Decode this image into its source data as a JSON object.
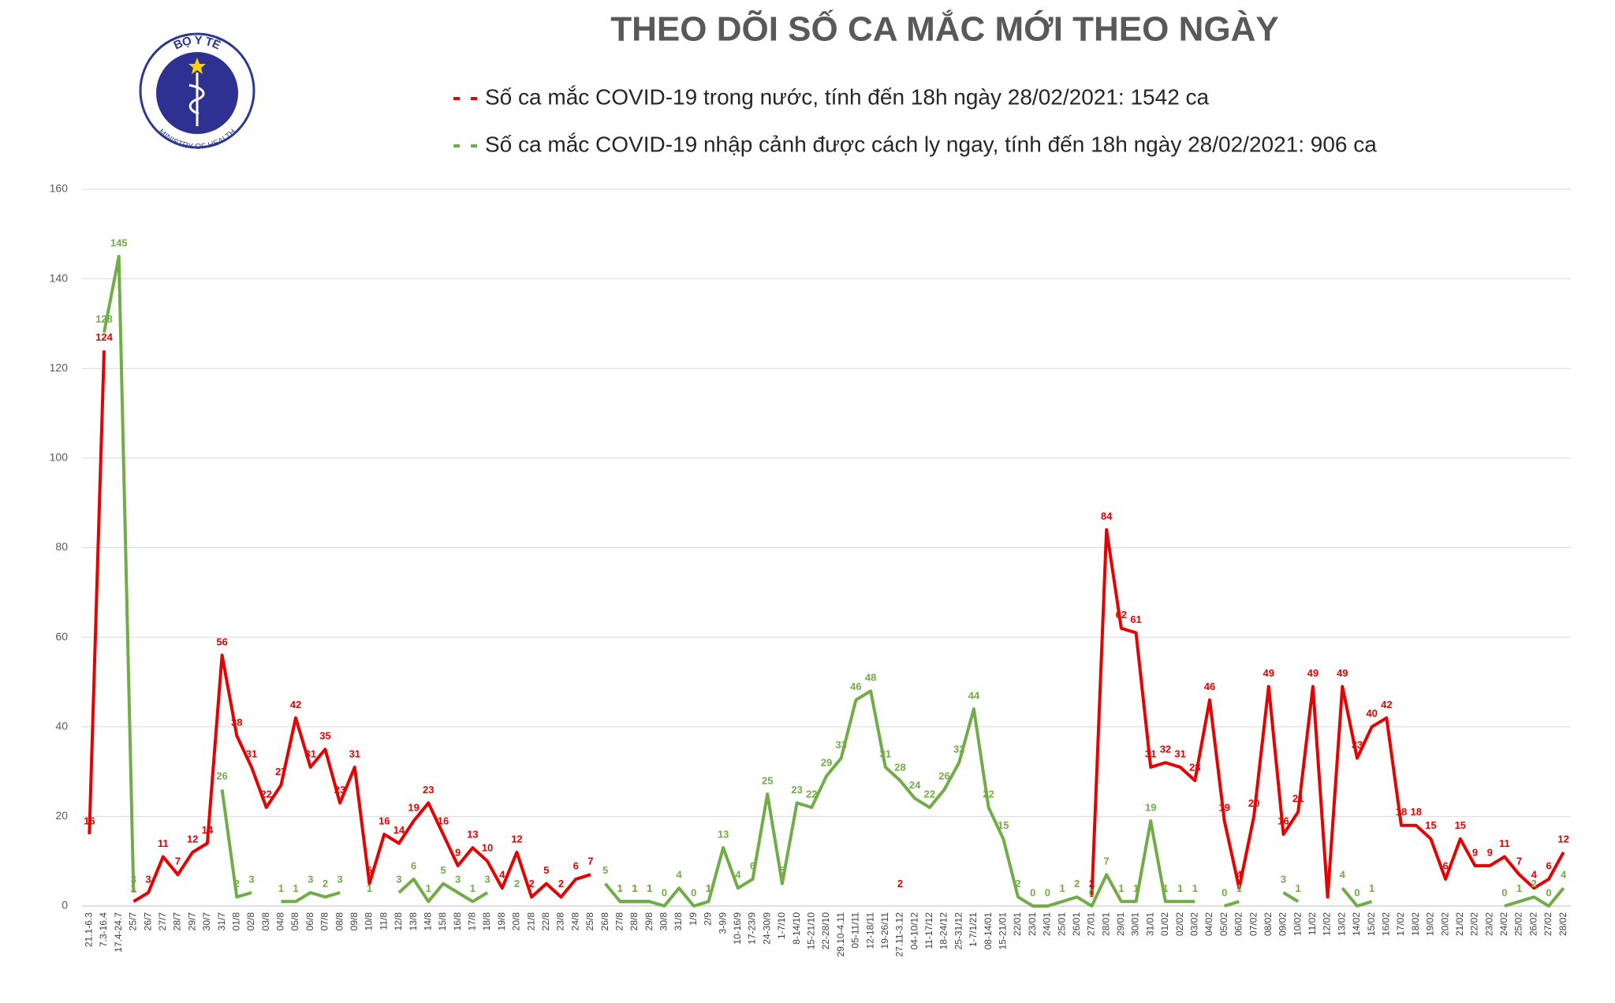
{
  "logo": {
    "top_text": "BỘ Y TẾ",
    "bottom_text": "MINISTRY OF HEALTH"
  },
  "chart_data": {
    "type": "line",
    "title": "THEO DÕI SỐ CA MẮC MỚI THEO NGÀY",
    "categories": [
      "21.1-6.3",
      "7.3-16.4",
      "17.4-24.7",
      "25/7",
      "26/7",
      "27/7",
      "28/7",
      "29/7",
      "30/7",
      "31/7",
      "01/8",
      "02/8",
      "03/8",
      "04/8",
      "05/8",
      "06/8",
      "07/8",
      "08/8",
      "09/8",
      "10/8",
      "11/8",
      "12/8",
      "13/8",
      "14/8",
      "15/8",
      "16/8",
      "17/8",
      "18/8",
      "19/8",
      "20/8",
      "21/8",
      "22/8",
      "23/8",
      "24/8",
      "25/8",
      "26/8",
      "27/8",
      "28/8",
      "29/8",
      "30/8",
      "31/8",
      "1/9",
      "2/9",
      "3-9/9",
      "10-16/9",
      "17-23/9",
      "24-30/9",
      "1-7/10",
      "8-14/10",
      "15-21/10",
      "22-28/10",
      "29.10-4.11",
      "05-11/11",
      "12-18/11",
      "19-26/11",
      "27.11-3.12",
      "04-10/12",
      "11-17/12",
      "18-24/12",
      "25-31/12",
      "1-7/1/21",
      "08-14/01",
      "15-21/01",
      "22/01",
      "23/01",
      "24/01",
      "25/01",
      "26/01",
      "27/01",
      "28/01",
      "29/01",
      "30/01",
      "31/01",
      "01/02",
      "02/02",
      "03/02",
      "04/02",
      "05/02",
      "06/02",
      "07/02",
      "08/02",
      "09/02",
      "10/02",
      "11/02",
      "12/02",
      "13/02",
      "14/02",
      "15/02",
      "16/02",
      "17/02",
      "18/02",
      "19/02",
      "20/02",
      "21/02",
      "22/02",
      "23/02",
      "24/02",
      "25/02",
      "26/02",
      "27/02",
      "28/02"
    ],
    "series": [
      {
        "name": "Số ca mắc COVID-19 trong nước, tính đến 18h ngày 28/02/2021: 1542 ca",
        "color": "#e60000",
        "values": [
          16,
          124,
          null,
          1,
          3,
          11,
          7,
          12,
          14,
          56,
          38,
          31,
          22,
          27,
          42,
          31,
          35,
          23,
          31,
          5,
          16,
          14,
          19,
          23,
          16,
          9,
          13,
          10,
          4,
          12,
          2,
          5,
          2,
          6,
          7,
          null,
          1,
          1,
          1,
          null,
          null,
          null,
          1,
          null,
          null,
          null,
          null,
          null,
          null,
          null,
          null,
          null,
          null,
          null,
          null,
          2,
          null,
          null,
          null,
          null,
          null,
          null,
          null,
          null,
          null,
          null,
          null,
          null,
          2,
          84,
          62,
          61,
          31,
          32,
          31,
          28,
          46,
          19,
          4,
          20,
          49,
          16,
          21,
          49,
          2,
          49,
          33,
          40,
          42,
          18,
          18,
          15,
          6,
          15,
          9,
          9,
          11,
          7,
          4,
          6,
          12
        ]
      },
      {
        "name": "Số ca mắc COVID-19 nhập cảnh được cách ly ngay, tính đến 18h ngày 28/02/2021: 906 ca",
        "color": "#70ad47",
        "values": [
          null,
          128,
          145,
          3,
          null,
          null,
          null,
          null,
          null,
          26,
          2,
          3,
          null,
          1,
          1,
          3,
          2,
          3,
          null,
          1,
          null,
          3,
          6,
          1,
          5,
          3,
          1,
          3,
          null,
          2,
          null,
          null,
          null,
          null,
          null,
          5,
          1,
          1,
          1,
          0,
          4,
          0,
          1,
          13,
          4,
          6,
          25,
          5,
          23,
          22,
          29,
          33,
          46,
          48,
          31,
          28,
          24,
          22,
          26,
          32,
          44,
          22,
          15,
          2,
          0,
          0,
          1,
          2,
          0,
          7,
          1,
          1,
          19,
          1,
          1,
          1,
          null,
          0,
          1,
          null,
          null,
          3,
          1,
          null,
          null,
          4,
          0,
          1,
          null,
          null,
          null,
          null,
          null,
          null,
          null,
          null,
          0,
          1,
          2,
          0,
          4
        ]
      }
    ],
    "ylim": [
      0,
      160
    ],
    "yticks": [
      0,
      20,
      40,
      60,
      80,
      100,
      120,
      140,
      160
    ],
    "grid": true
  }
}
